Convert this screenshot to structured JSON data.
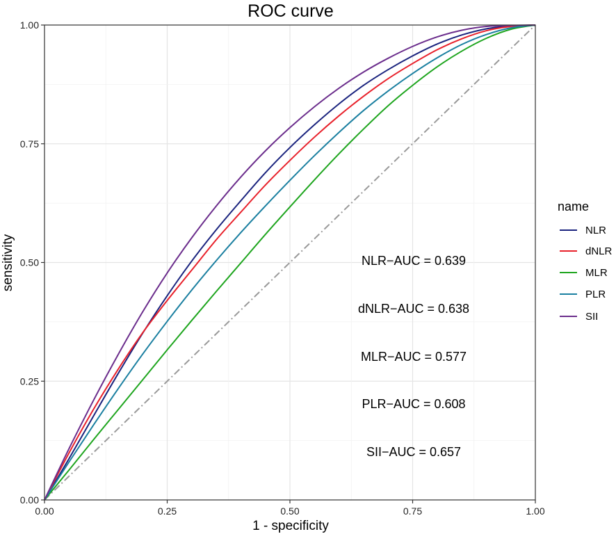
{
  "chart_data": {
    "type": "line",
    "title": "ROC curve",
    "xlabel": "1 - specificity",
    "ylabel": "sensitivity",
    "xlim": [
      0,
      1
    ],
    "ylim": [
      0,
      1
    ],
    "xticks": [
      "0.00",
      "0.25",
      "0.50",
      "0.75",
      "1.00"
    ],
    "yticks": [
      "0.00",
      "0.25",
      "0.50",
      "0.75",
      "1.00"
    ],
    "grid": true,
    "legend": {
      "title": "name",
      "position": "right",
      "entries": [
        "NLR",
        "dNLR",
        "MLR",
        "PLR",
        "SII"
      ]
    },
    "series": [
      {
        "name": "NLR",
        "color": "#1a237e",
        "x": [
          0,
          0.05,
          0.1,
          0.15,
          0.2,
          0.25,
          0.3,
          0.35,
          0.4,
          0.45,
          0.5,
          0.55,
          0.6,
          0.65,
          0.7,
          0.75,
          0.8,
          0.85,
          0.9,
          0.95,
          1
        ],
        "y": [
          0,
          0.087,
          0.177,
          0.266,
          0.351,
          0.43,
          0.503,
          0.569,
          0.63,
          0.689,
          0.742,
          0.79,
          0.834,
          0.873,
          0.906,
          0.935,
          0.96,
          0.979,
          0.992,
          0.998,
          1
        ]
      },
      {
        "name": "dNLR",
        "color": "#e8202a",
        "x": [
          0,
          0.05,
          0.1,
          0.15,
          0.2,
          0.25,
          0.3,
          0.35,
          0.4,
          0.45,
          0.5,
          0.55,
          0.6,
          0.65,
          0.7,
          0.75,
          0.8,
          0.85,
          0.9,
          0.95,
          1
        ],
        "y": [
          0,
          0.099,
          0.191,
          0.275,
          0.352,
          0.42,
          0.484,
          0.548,
          0.606,
          0.663,
          0.715,
          0.764,
          0.809,
          0.85,
          0.887,
          0.919,
          0.948,
          0.971,
          0.988,
          0.997,
          1
        ]
      },
      {
        "name": "MLR",
        "color": "#1ea51e",
        "x": [
          0,
          0.05,
          0.1,
          0.15,
          0.2,
          0.25,
          0.3,
          0.35,
          0.4,
          0.45,
          0.5,
          0.55,
          0.6,
          0.65,
          0.7,
          0.75,
          0.8,
          0.85,
          0.9,
          0.95,
          1
        ],
        "y": [
          0,
          0.063,
          0.127,
          0.19,
          0.253,
          0.316,
          0.378,
          0.439,
          0.499,
          0.559,
          0.617,
          0.674,
          0.729,
          0.781,
          0.83,
          0.873,
          0.912,
          0.945,
          0.972,
          0.991,
          1
        ]
      },
      {
        "name": "PLR",
        "color": "#1a7fa0",
        "x": [
          0,
          0.05,
          0.1,
          0.15,
          0.2,
          0.25,
          0.3,
          0.35,
          0.4,
          0.45,
          0.5,
          0.55,
          0.6,
          0.65,
          0.7,
          0.75,
          0.8,
          0.85,
          0.9,
          0.95,
          1
        ],
        "y": [
          0,
          0.08,
          0.158,
          0.234,
          0.307,
          0.376,
          0.442,
          0.504,
          0.563,
          0.619,
          0.673,
          0.725,
          0.774,
          0.82,
          0.861,
          0.898,
          0.931,
          0.959,
          0.98,
          0.994,
          1
        ]
      },
      {
        "name": "SII",
        "color": "#6b2d8c",
        "x": [
          0,
          0.05,
          0.1,
          0.15,
          0.2,
          0.25,
          0.3,
          0.35,
          0.4,
          0.45,
          0.5,
          0.55,
          0.6,
          0.65,
          0.7,
          0.75,
          0.8,
          0.85,
          0.9,
          0.95,
          1
        ],
        "y": [
          0,
          0.108,
          0.21,
          0.306,
          0.396,
          0.478,
          0.552,
          0.619,
          0.68,
          0.735,
          0.784,
          0.828,
          0.867,
          0.901,
          0.93,
          0.955,
          0.975,
          0.989,
          0.997,
          0.999,
          1
        ]
      }
    ],
    "reference_line": {
      "x": [
        0,
        1
      ],
      "y": [
        0,
        1
      ],
      "color": "#999999",
      "style": "dash-dot"
    },
    "annotations": [
      {
        "label": "NLR-AUC",
        "value": "0.639"
      },
      {
        "label": "dNLR-AUC",
        "value": "0.638"
      },
      {
        "label": "MLR-AUC",
        "value": "0.577"
      },
      {
        "label": "PLR-AUC",
        "value": "0.608"
      },
      {
        "label": "SII-AUC",
        "value": "0.657"
      }
    ]
  }
}
